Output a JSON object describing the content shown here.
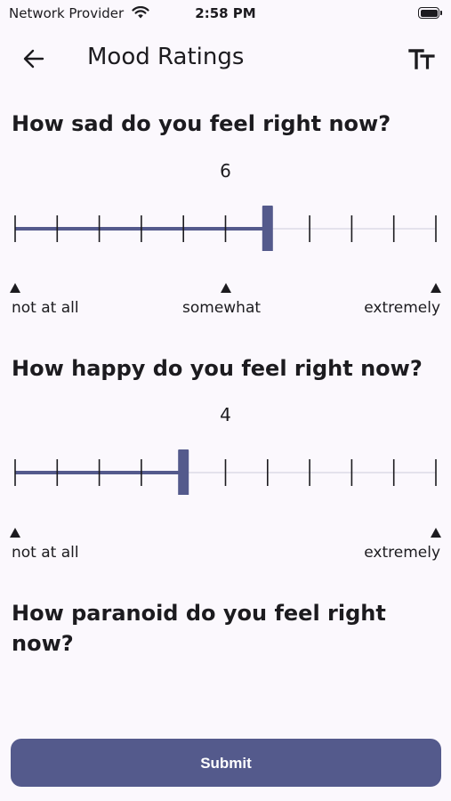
{
  "status_bar": {
    "carrier": "Network Provider",
    "time": "2:58 PM"
  },
  "app_bar": {
    "title": "Mood Ratings",
    "back_icon": "arrow-left-icon",
    "text_size_icon": "text-size-icon"
  },
  "colors": {
    "accent": "#545a8c",
    "track_inactive": "#e4e2ec",
    "background": "#fbf8fd",
    "text": "#1c1b1f"
  },
  "questions": [
    {
      "title": "How sad do you feel right now?",
      "value": 6,
      "value_label": "6",
      "min": 0,
      "max": 10,
      "ticks": [
        "0",
        "1",
        "2",
        "3",
        "4",
        "5",
        "6",
        "7",
        "8",
        "9",
        "10"
      ],
      "anchors": [
        {
          "at": 0,
          "label": "not at all"
        },
        {
          "at": 5,
          "label": "somewhat"
        },
        {
          "at": 10,
          "label": "extremely"
        }
      ]
    },
    {
      "title": "How happy do you feel right now?",
      "value": 4,
      "value_label": "4",
      "min": 0,
      "max": 10,
      "ticks": [
        "0",
        "1",
        "2",
        "3",
        "4",
        "5",
        "6",
        "7",
        "8",
        "9",
        "10"
      ],
      "anchors": [
        {
          "at": 0,
          "label": "not at all"
        },
        {
          "at": 10,
          "label": "extremely"
        }
      ]
    },
    {
      "title": "How paranoid do you feel right now?"
    }
  ],
  "submit": {
    "label": "Submit"
  }
}
